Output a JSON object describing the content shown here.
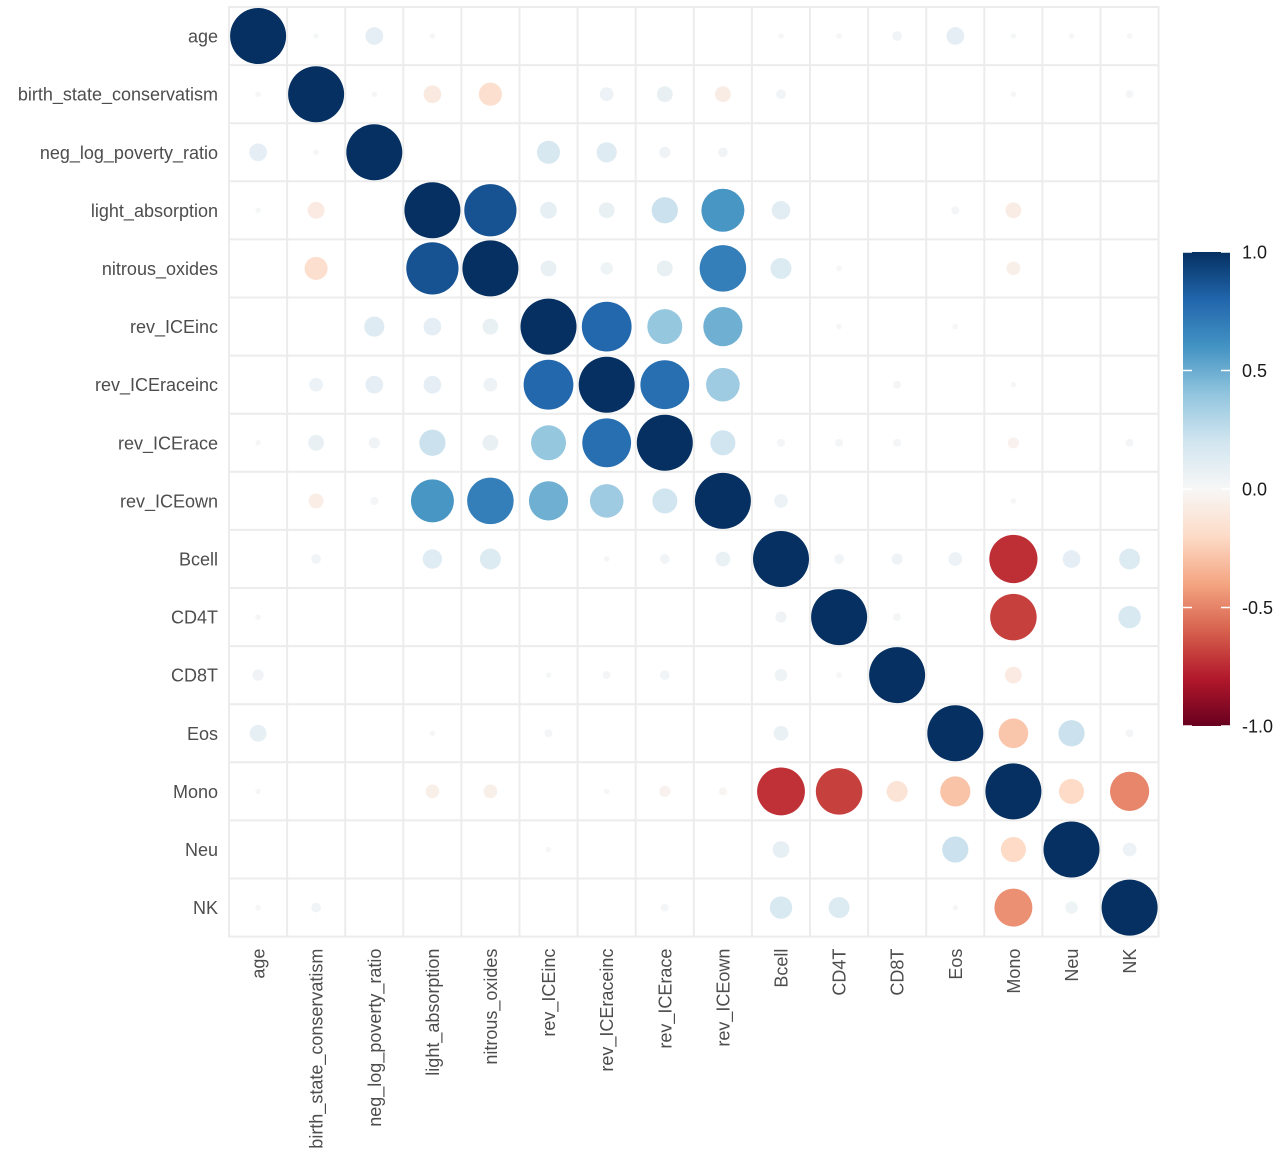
{
  "chart_data": {
    "type": "heatmap",
    "style": "correlation-circles",
    "labels": [
      "age",
      "birth_state_conservatism",
      "neg_log_poverty_ratio",
      "light_absorption",
      "nitrous_oxides",
      "rev_ICEinc",
      "rev_ICEraceinc",
      "rev_ICErace",
      "rev_ICEown",
      "Bcell",
      "CD4T",
      "CD8T",
      "Eos",
      "Mono",
      "Neu",
      "NK"
    ],
    "matrix": [
      [
        1,
        0.01,
        0.1,
        0.01,
        0,
        0,
        0,
        0,
        0,
        0.01,
        0.01,
        0.03,
        0.1,
        0.01,
        0.01,
        0.01
      ],
      [
        0.01,
        1,
        0.01,
        -0.1,
        -0.17,
        0,
        0.06,
        0.08,
        -0.08,
        0.03,
        0,
        0,
        0,
        0.01,
        0,
        0.02
      ],
      [
        0.1,
        0.01,
        1,
        0,
        0,
        0.17,
        0.13,
        0.04,
        0.03,
        0,
        0,
        0,
        0,
        0,
        0,
        0
      ],
      [
        0.01,
        -0.09,
        0,
        1,
        0.87,
        0.09,
        0.08,
        0.22,
        0.59,
        0.11,
        0,
        0,
        0.02,
        -0.08,
        0,
        0
      ],
      [
        0,
        -0.17,
        0,
        0.87,
        1,
        0.08,
        0.05,
        0.08,
        0.69,
        0.14,
        0.01,
        0,
        0,
        -0.06,
        0,
        0
      ],
      [
        0,
        0,
        0.13,
        0.1,
        0.08,
        1,
        0.79,
        0.39,
        0.49,
        0,
        0.01,
        0,
        0.01,
        0,
        0,
        0
      ],
      [
        0,
        0.06,
        0.1,
        0.1,
        0.06,
        0.79,
        1,
        0.76,
        0.36,
        0,
        0,
        0.02,
        0,
        0.01,
        0,
        0
      ],
      [
        0.01,
        0.08,
        0.04,
        0.22,
        0.08,
        0.39,
        0.76,
        1,
        0.2,
        0.02,
        0.02,
        0.02,
        0,
        -0.04,
        0,
        0.02
      ],
      [
        0,
        -0.07,
        0.02,
        0.59,
        0.69,
        0.49,
        0.36,
        0.2,
        1,
        0.06,
        0,
        0,
        0,
        0.01,
        0,
        0
      ],
      [
        0,
        0.03,
        0,
        0.12,
        0.14,
        0,
        0.01,
        0.03,
        0.07,
        1,
        0.03,
        0.04,
        0.06,
        -0.74,
        0.1,
        0.14
      ],
      [
        0.01,
        0,
        0,
        0,
        0,
        0,
        0,
        0,
        0,
        0.04,
        1,
        0.02,
        0,
        -0.69,
        0,
        0.16
      ],
      [
        0.04,
        0,
        0,
        0,
        0,
        0.01,
        0.02,
        0.03,
        0,
        0.05,
        0.01,
        1,
        0,
        -0.09,
        0,
        0
      ],
      [
        0.09,
        0,
        0,
        0.01,
        0,
        0.02,
        0,
        0,
        0,
        0.07,
        0,
        0,
        1,
        -0.28,
        0.22,
        0.02
      ],
      [
        0.01,
        0,
        0,
        -0.06,
        -0.06,
        0,
        0.01,
        -0.04,
        -0.02,
        -0.73,
        -0.69,
        -0.14,
        -0.29,
        1,
        -0.2,
        -0.49
      ],
      [
        0,
        0,
        0,
        0,
        0,
        0.01,
        0,
        0,
        0,
        0.09,
        0,
        0,
        0.22,
        -0.2,
        1,
        0.06
      ],
      [
        0.01,
        0.03,
        0,
        0,
        0,
        0,
        0,
        0.02,
        0,
        0.16,
        0.14,
        0,
        0.01,
        -0.46,
        0.05,
        1
      ]
    ],
    "colorbar": {
      "ticks": [
        "1.0",
        "0.5",
        "0.0",
        "-0.5",
        "-1.0"
      ],
      "range": [
        -1,
        1
      ],
      "colors": [
        "#67001f",
        "#b2182b",
        "#d6604d",
        "#f4a582",
        "#fddbc7",
        "#f7f7f7",
        "#d1e5f0",
        "#92c5de",
        "#4393c3",
        "#2166ac",
        "#053061"
      ]
    },
    "grid": true,
    "legend": "right"
  }
}
